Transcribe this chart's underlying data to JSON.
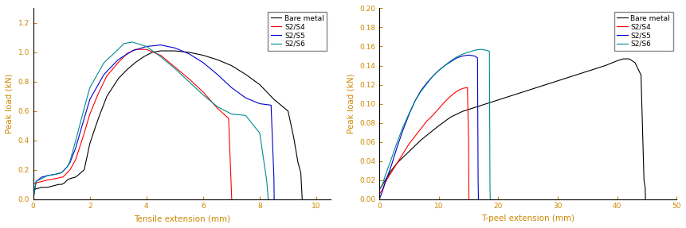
{
  "left": {
    "xlabel": "Tensile extension (mm)",
    "ylabel": "Peak load (kN)",
    "xlim": [
      0,
      10.5
    ],
    "ylim": [
      0,
      1.3
    ],
    "yticks": [
      0.0,
      0.2,
      0.4,
      0.6,
      0.8,
      1.0,
      1.2
    ],
    "xticks": [
      0,
      2,
      4,
      6,
      8,
      10
    ],
    "legend_labels": [
      "Bare metal",
      "S2/S4",
      "S2/S5",
      "S2/S6"
    ],
    "line_colors": [
      "#000000",
      "#ff0000",
      "#0000cd",
      "#008b8b"
    ],
    "series": {
      "bare_metal": {
        "x": [
          0.0,
          0.1,
          0.3,
          0.5,
          0.7,
          0.9,
          1.0,
          1.1,
          1.15,
          1.2,
          1.3,
          1.5,
          1.8,
          2.0,
          2.3,
          2.6,
          3.0,
          3.3,
          3.6,
          3.9,
          4.2,
          4.5,
          5.0,
          5.5,
          6.0,
          6.5,
          7.0,
          7.5,
          8.0,
          8.5,
          9.0,
          9.2,
          9.35,
          9.45,
          9.5
        ],
        "y": [
          0.06,
          0.07,
          0.08,
          0.08,
          0.09,
          0.1,
          0.1,
          0.11,
          0.12,
          0.13,
          0.14,
          0.15,
          0.2,
          0.38,
          0.55,
          0.7,
          0.82,
          0.88,
          0.93,
          0.97,
          1.0,
          1.01,
          1.01,
          1.0,
          0.98,
          0.95,
          0.91,
          0.85,
          0.78,
          0.68,
          0.6,
          0.42,
          0.25,
          0.18,
          0.0
        ]
      },
      "s2s4": {
        "x": [
          0.0,
          0.1,
          0.3,
          0.5,
          0.8,
          1.0,
          1.05,
          1.1,
          1.15,
          1.2,
          1.3,
          1.5,
          1.8,
          2.0,
          2.3,
          2.6,
          3.0,
          3.3,
          3.6,
          4.0,
          4.5,
          5.0,
          5.5,
          6.0,
          6.5,
          6.9,
          6.95,
          7.0,
          7.01
        ],
        "y": [
          0.1,
          0.11,
          0.12,
          0.13,
          0.14,
          0.15,
          0.15,
          0.16,
          0.17,
          0.18,
          0.2,
          0.27,
          0.45,
          0.58,
          0.72,
          0.84,
          0.93,
          0.99,
          1.02,
          1.02,
          0.98,
          0.9,
          0.82,
          0.73,
          0.62,
          0.55,
          0.3,
          0.05,
          0.0
        ]
      },
      "s2s5": {
        "x": [
          0.0,
          0.1,
          0.3,
          0.5,
          0.8,
          1.0,
          1.05,
          1.1,
          1.15,
          1.2,
          1.3,
          1.5,
          1.8,
          2.0,
          2.5,
          3.0,
          3.5,
          4.0,
          4.5,
          5.0,
          5.5,
          6.0,
          6.5,
          7.0,
          7.5,
          8.0,
          8.4,
          8.5,
          8.51
        ],
        "y": [
          0.0,
          0.12,
          0.15,
          0.16,
          0.17,
          0.18,
          0.19,
          0.2,
          0.21,
          0.22,
          0.25,
          0.35,
          0.55,
          0.68,
          0.85,
          0.95,
          1.01,
          1.04,
          1.05,
          1.03,
          0.99,
          0.93,
          0.85,
          0.76,
          0.69,
          0.65,
          0.64,
          0.15,
          0.0
        ]
      },
      "s2s6": {
        "x": [
          0.0,
          0.1,
          0.3,
          0.5,
          0.8,
          1.0,
          1.05,
          1.1,
          1.2,
          1.3,
          1.5,
          1.8,
          2.0,
          2.5,
          3.0,
          3.2,
          3.5,
          4.0,
          4.5,
          5.0,
          5.5,
          6.0,
          6.5,
          7.0,
          7.5,
          8.0,
          8.25,
          8.3,
          8.31
        ],
        "y": [
          0.0,
          0.12,
          0.14,
          0.16,
          0.17,
          0.18,
          0.19,
          0.2,
          0.22,
          0.26,
          0.4,
          0.62,
          0.76,
          0.93,
          1.02,
          1.06,
          1.07,
          1.04,
          0.97,
          0.89,
          0.8,
          0.71,
          0.63,
          0.58,
          0.57,
          0.45,
          0.12,
          0.0,
          0.0
        ]
      }
    }
  },
  "right": {
    "xlabel": "T-peel extension (mm)",
    "ylabel": "Peak load (kN)",
    "xlim": [
      0,
      50
    ],
    "ylim": [
      0,
      0.2
    ],
    "yticks": [
      0.0,
      0.02,
      0.04,
      0.06,
      0.08,
      0.1,
      0.12,
      0.14,
      0.16,
      0.18,
      0.2
    ],
    "xticks": [
      0,
      10,
      20,
      30,
      40,
      50
    ],
    "legend_labels": [
      "Bare metal",
      "S2/S4",
      "S2/S5",
      "S2/S6"
    ],
    "line_colors": [
      "#000000",
      "#ff0000",
      "#0000cd",
      "#008b8b"
    ],
    "series": {
      "bare_metal": {
        "x": [
          0,
          0.5,
          1,
          2,
          3,
          4,
          5,
          6,
          7,
          8,
          9,
          10,
          12,
          14,
          16,
          18,
          20,
          22,
          24,
          26,
          28,
          30,
          32,
          34,
          36,
          38,
          40,
          41,
          42,
          43,
          44,
          44.5,
          44.7,
          44.75
        ],
        "y": [
          0.01,
          0.015,
          0.02,
          0.03,
          0.038,
          0.044,
          0.05,
          0.056,
          0.062,
          0.067,
          0.072,
          0.077,
          0.086,
          0.092,
          0.096,
          0.1,
          0.104,
          0.108,
          0.112,
          0.116,
          0.12,
          0.124,
          0.128,
          0.132,
          0.136,
          0.14,
          0.145,
          0.147,
          0.147,
          0.143,
          0.13,
          0.02,
          0.012,
          0.0
        ]
      },
      "s2s4": {
        "x": [
          0,
          0.5,
          1,
          2,
          3,
          4,
          5,
          6,
          7,
          8,
          9,
          10,
          11,
          12,
          13,
          14,
          14.8,
          15.0,
          15.05
        ],
        "y": [
          0.005,
          0.01,
          0.018,
          0.028,
          0.038,
          0.048,
          0.058,
          0.066,
          0.074,
          0.082,
          0.088,
          0.095,
          0.102,
          0.108,
          0.113,
          0.116,
          0.117,
          0.06,
          0.0
        ]
      },
      "s2s5": {
        "x": [
          0,
          0.5,
          1,
          2,
          3,
          4,
          5,
          6,
          7,
          8,
          9,
          10,
          11,
          12,
          13,
          14,
          15,
          16,
          16.5,
          16.6,
          16.65
        ],
        "y": [
          0.0,
          0.008,
          0.018,
          0.035,
          0.055,
          0.073,
          0.089,
          0.103,
          0.114,
          0.122,
          0.129,
          0.135,
          0.14,
          0.144,
          0.148,
          0.15,
          0.151,
          0.15,
          0.148,
          0.02,
          0.0
        ]
      },
      "s2s6": {
        "x": [
          0,
          0.5,
          1,
          2,
          3,
          4,
          5,
          6,
          7,
          8,
          9,
          10,
          11,
          12,
          13,
          14,
          15,
          16,
          17,
          18,
          18.5,
          18.6,
          18.65
        ],
        "y": [
          0.01,
          0.015,
          0.025,
          0.042,
          0.06,
          0.076,
          0.09,
          0.103,
          0.113,
          0.121,
          0.129,
          0.135,
          0.14,
          0.145,
          0.149,
          0.152,
          0.154,
          0.156,
          0.157,
          0.156,
          0.155,
          0.01,
          0.0
        ]
      }
    }
  },
  "tick_color": "#cc8800",
  "label_color": "#cc8800",
  "spine_color": "#000000"
}
